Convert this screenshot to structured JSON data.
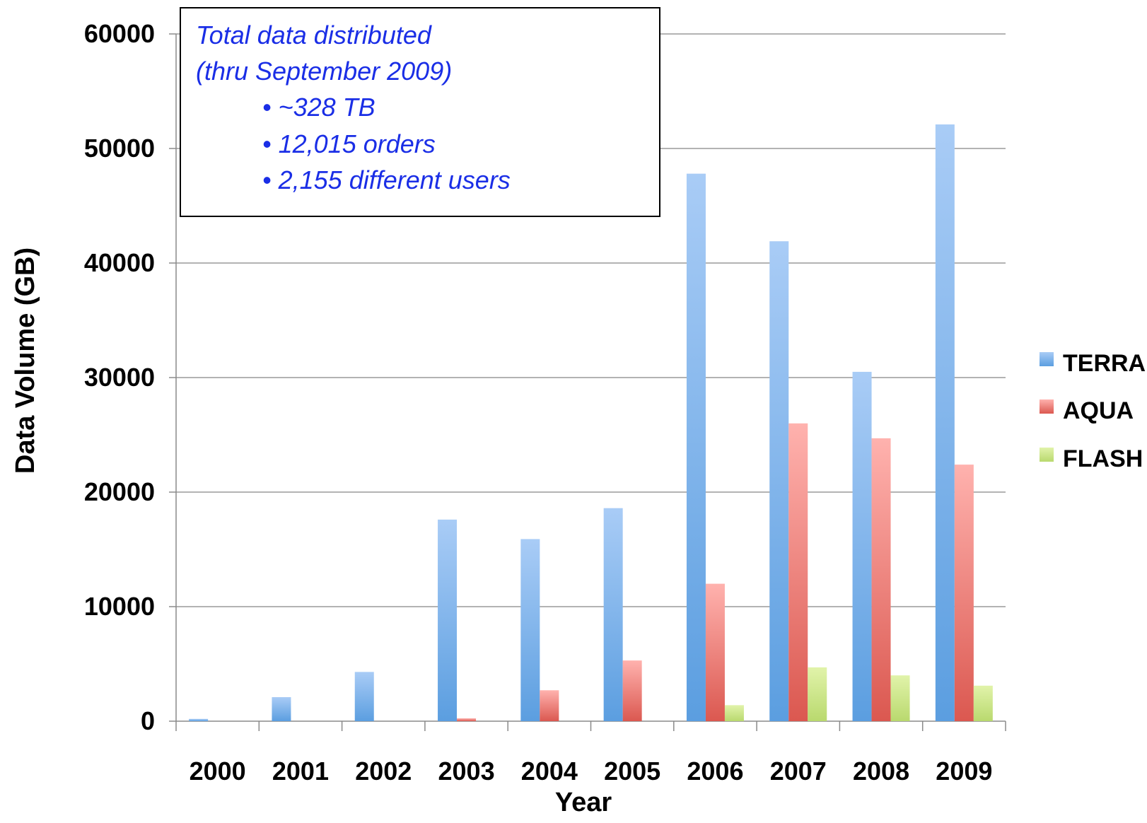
{
  "chart_data": {
    "type": "bar",
    "categories": [
      "2000",
      "2001",
      "2002",
      "2003",
      "2004",
      "2005",
      "2006",
      "2007",
      "2008",
      "2009"
    ],
    "series": [
      {
        "name": "TERRA",
        "color": "#5b9ee0",
        "color_light": "#a9ccf6",
        "values": [
          200,
          2100,
          4300,
          17600,
          15900,
          18600,
          47800,
          41900,
          30500,
          52100
        ]
      },
      {
        "name": "AQUA",
        "color": "#db5850",
        "color_light": "#ffb2ae",
        "values": [
          0,
          0,
          0,
          250,
          2700,
          5300,
          12000,
          26000,
          24700,
          22400
        ]
      },
      {
        "name": "FLASH",
        "color": "#b9d96e",
        "color_light": "#e1f3aa",
        "values": [
          0,
          0,
          0,
          0,
          0,
          0,
          1400,
          4700,
          4000,
          3100
        ]
      }
    ],
    "xlabel": "Year",
    "ylabel": "Data Volume (GB)",
    "ylim": [
      0,
      60000
    ],
    "yticks": [
      0,
      10000,
      20000,
      30000,
      40000,
      50000,
      60000
    ],
    "grid": true,
    "legend_position": "right",
    "annotation": {
      "lines": [
        "Total data distributed",
        "(thru September 2009)"
      ],
      "bullets": [
        "• ~328 TB",
        "• 12,015 orders",
        "• 2,155 different users"
      ]
    }
  }
}
